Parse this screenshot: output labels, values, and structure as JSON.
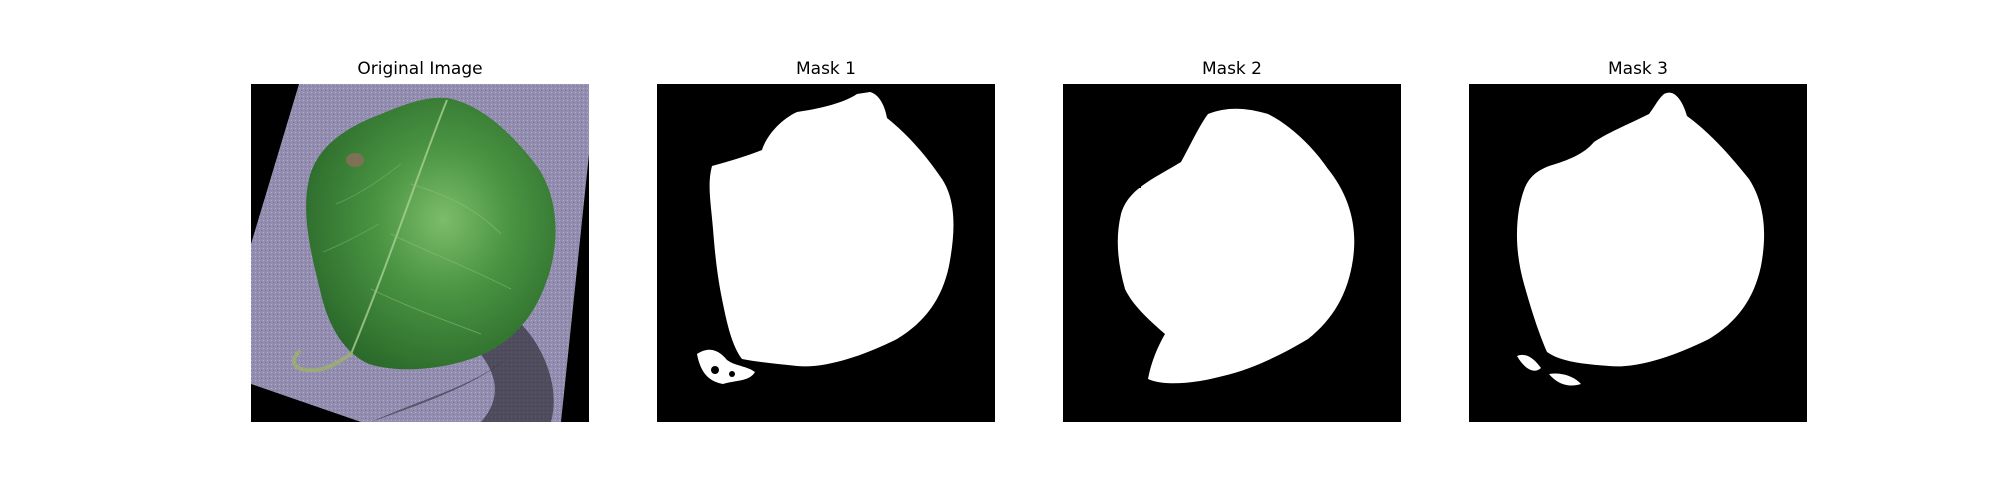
{
  "figure": {
    "panels": [
      {
        "title": "Original Image",
        "content": "leaf-photo"
      },
      {
        "title": "Mask 1",
        "content": "segmentation-mask"
      },
      {
        "title": "Mask 2",
        "content": "segmentation-mask"
      },
      {
        "title": "Mask 3",
        "content": "segmentation-mask"
      }
    ]
  },
  "colors": {
    "background": "#ffffff",
    "mask_background": "#000000",
    "mask_foreground": "#ffffff",
    "surface": "#8f89ad",
    "leaf_dark": "#2f6b2c",
    "leaf_mid": "#3f8a3a",
    "leaf_light": "#6fb060",
    "shadow": "#2a2a33"
  }
}
